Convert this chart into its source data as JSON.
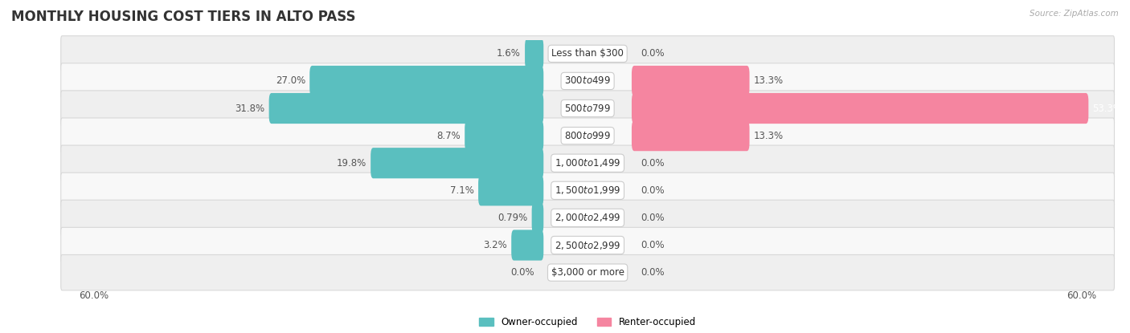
{
  "title": "MONTHLY HOUSING COST TIERS IN ALTO PASS",
  "source": "Source: ZipAtlas.com",
  "categories": [
    "Less than $300",
    "$300 to $499",
    "$500 to $799",
    "$800 to $999",
    "$1,000 to $1,499",
    "$1,500 to $1,999",
    "$2,000 to $2,499",
    "$2,500 to $2,999",
    "$3,000 or more"
  ],
  "owner_values": [
    1.6,
    27.0,
    31.8,
    8.7,
    19.8,
    7.1,
    0.79,
    3.2,
    0.0
  ],
  "renter_values": [
    0.0,
    13.3,
    53.3,
    13.3,
    0.0,
    0.0,
    0.0,
    0.0,
    0.0
  ],
  "owner_color": "#5abfbf",
  "renter_color": "#f585a0",
  "owner_label": "Owner-occupied",
  "renter_label": "Renter-occupied",
  "axis_limit": 60.0,
  "bar_height": 0.52,
  "title_fontsize": 12,
  "label_fontsize": 8.5,
  "category_fontsize": 8.5,
  "axis_label_fontsize": 8.5,
  "background_color": "#ffffff",
  "row_bg_color": "#efefef",
  "label_color": "#555555"
}
